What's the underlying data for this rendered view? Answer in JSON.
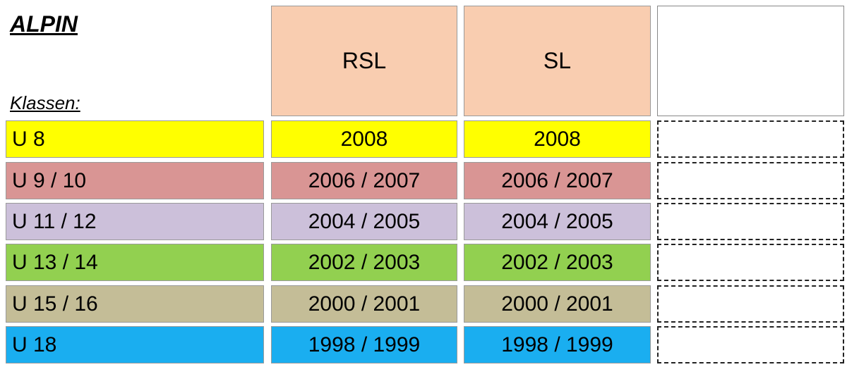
{
  "title": "ALPIN",
  "subtitle": "Klassen:",
  "table": {
    "columns": [
      "RSL",
      "SL"
    ],
    "rows": [
      [
        "U 8",
        "2008",
        "2008"
      ],
      [
        "U 9 / 10",
        "2006 / 2007",
        "2006 / 2007"
      ],
      [
        "U 11 / 12",
        "2004 / 2005",
        "2004 / 2005"
      ],
      [
        "U 13 / 14",
        "2002 / 2003",
        "2002 / 2003"
      ],
      [
        "U 15 / 16",
        "2000 / 2001",
        "2000 / 2001"
      ],
      [
        "U 18",
        "1998 / 1999",
        "1998 / 1999"
      ]
    ]
  }
}
